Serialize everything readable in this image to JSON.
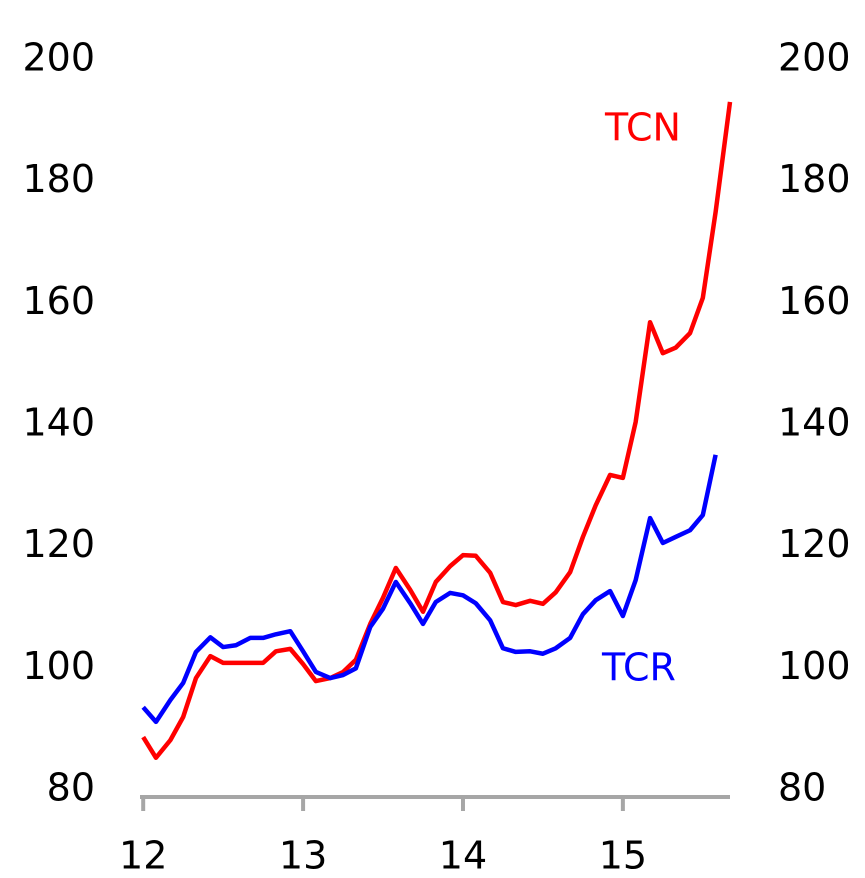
{
  "chart_data": {
    "type": "line",
    "x": [
      12,
      12.08,
      12.17,
      12.25,
      12.33,
      12.42,
      12.5,
      12.58,
      12.67,
      12.75,
      12.83,
      12.92,
      13,
      13.08,
      13.17,
      13.25,
      13.33,
      13.42,
      13.5,
      13.58,
      13.67,
      13.75,
      13.83,
      13.92,
      14,
      14.08,
      14.17,
      14.25,
      14.33,
      14.42,
      14.5,
      14.58,
      14.67,
      14.75,
      14.83,
      14.92,
      15,
      15.08,
      15.17,
      15.25,
      15.33,
      15.42,
      15.5,
      15.58,
      15.67
    ],
    "series": [
      {
        "name": "TCN",
        "color": "#ff0000",
        "values": [
          88.7,
          85.3,
          88.2,
          92,
          98.4,
          102,
          100.9,
          100.9,
          100.9,
          100.9,
          102.8,
          103.2,
          100.7,
          97.9,
          98.4,
          99.4,
          101.4,
          107.3,
          111.6,
          116.5,
          112.9,
          109.3,
          114.2,
          116.8,
          118.6,
          118.5,
          115.7,
          110.9,
          110.4,
          111.1,
          110.6,
          112.5,
          115.8,
          121.6,
          126.8,
          131.8,
          131.3,
          140.5,
          156.9,
          151.8,
          152.7,
          155.1,
          160.9,
          175,
          193.1
        ]
      },
      {
        "name": "TCR",
        "color": "#0000ff",
        "values": [
          93.6,
          91.2,
          94.8,
          97.6,
          102.7,
          105.1,
          103.5,
          103.8,
          105,
          105,
          105.6,
          106.1,
          102.8,
          99.4,
          98.4,
          98.9,
          100,
          106.8,
          109.8,
          114.2,
          110.7,
          107.3,
          110.9,
          112.4,
          112,
          110.7,
          107.9,
          103.3,
          102.7,
          102.8,
          102.4,
          103.3,
          105,
          108.9,
          111.2,
          112.7,
          108.6,
          114.5,
          124.7,
          120.6,
          121.6,
          122.7,
          125.2,
          135.1,
          null
        ]
      }
    ],
    "xlim": [
      11.98,
      15.67
    ],
    "xticks": [
      12,
      13,
      14,
      15
    ],
    "ylim": [
      80,
      200
    ],
    "yticks": [
      80,
      100,
      120,
      140,
      160,
      180,
      200
    ],
    "y2lim": [
      80,
      200
    ],
    "y2ticks": [
      80,
      100,
      120,
      140,
      160,
      180,
      200
    ]
  }
}
